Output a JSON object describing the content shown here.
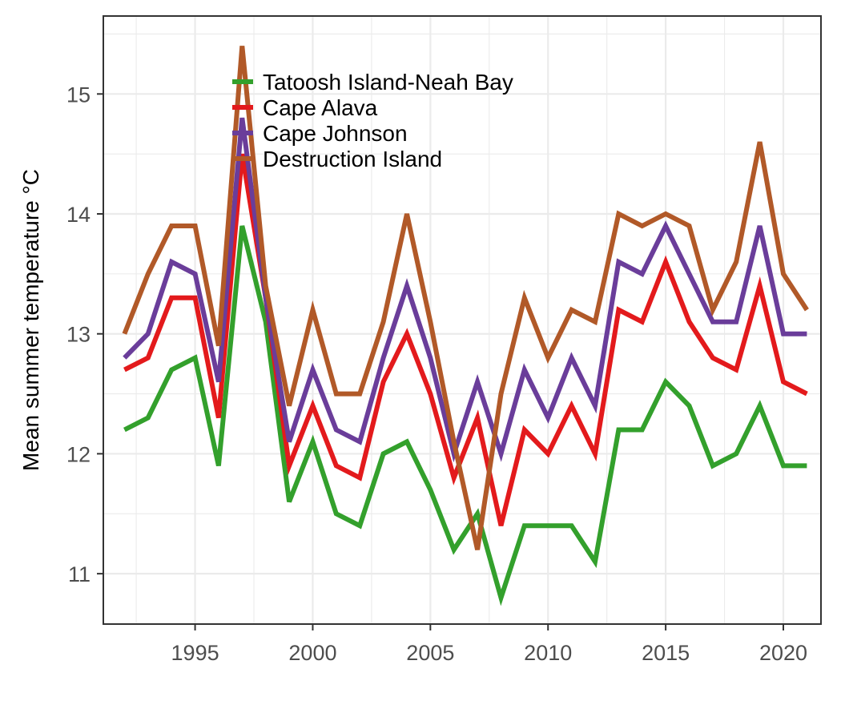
{
  "chart_data": {
    "type": "line",
    "title": "",
    "xlabel": "",
    "ylabel": "Mean summer temperature °C",
    "xlim": [
      1991.1,
      2021.6
    ],
    "ylim": [
      10.58,
      15.65
    ],
    "x_ticks": [
      1995,
      2000,
      2005,
      2010,
      2015,
      2020
    ],
    "y_ticks": [
      11,
      12,
      13,
      14,
      15
    ],
    "grid": true,
    "legend_position": "top-left",
    "x": [
      1992,
      1993,
      1994,
      1995,
      1996,
      1997,
      1998,
      1999,
      2000,
      2001,
      2002,
      2003,
      2004,
      2005,
      2006,
      2007,
      2008,
      2009,
      2010,
      2011,
      2012,
      2013,
      2014,
      2015,
      2016,
      2017,
      2018,
      2019,
      2020,
      2021
    ],
    "series": [
      {
        "name": "Tatoosh Island-Neah Bay",
        "color": "#33a02c",
        "values": [
          12.2,
          12.3,
          12.7,
          12.8,
          11.9,
          13.9,
          13.1,
          11.6,
          12.1,
          11.5,
          11.4,
          12.0,
          12.1,
          11.7,
          11.2,
          11.5,
          10.8,
          11.4,
          11.4,
          11.4,
          11.1,
          12.2,
          12.2,
          12.6,
          12.4,
          11.9,
          12.0,
          12.4,
          11.9,
          11.9
        ]
      },
      {
        "name": "Cape Alava",
        "color": "#e31a1c",
        "values": [
          12.7,
          12.8,
          13.3,
          13.3,
          12.3,
          14.5,
          13.3,
          11.9,
          12.4,
          11.9,
          11.8,
          12.6,
          13.0,
          12.5,
          11.8,
          12.3,
          11.4,
          12.2,
          12.0,
          12.4,
          12.0,
          13.2,
          13.1,
          13.6,
          13.1,
          12.8,
          12.7,
          13.4,
          12.6,
          12.5
        ]
      },
      {
        "name": "Cape Johnson",
        "color": "#6a3d9a",
        "values": [
          12.8,
          13.0,
          13.6,
          13.5,
          12.6,
          14.8,
          13.3,
          12.1,
          12.7,
          12.2,
          12.1,
          12.8,
          13.4,
          12.8,
          12.0,
          12.6,
          12.0,
          12.7,
          12.3,
          12.8,
          12.4,
          13.6,
          13.5,
          13.9,
          13.5,
          13.1,
          13.1,
          13.9,
          13.0,
          13.0
        ]
      },
      {
        "name": "Destruction Island",
        "color": "#b15928",
        "values": [
          13.0,
          13.5,
          13.9,
          13.9,
          12.9,
          15.4,
          13.4,
          12.4,
          13.2,
          12.5,
          12.5,
          13.1,
          14.0,
          13.1,
          12.1,
          11.2,
          12.5,
          13.3,
          12.8,
          13.2,
          13.1,
          14.0,
          13.9,
          14.0,
          13.9,
          13.2,
          13.6,
          14.6,
          13.5,
          13.2
        ]
      }
    ]
  }
}
